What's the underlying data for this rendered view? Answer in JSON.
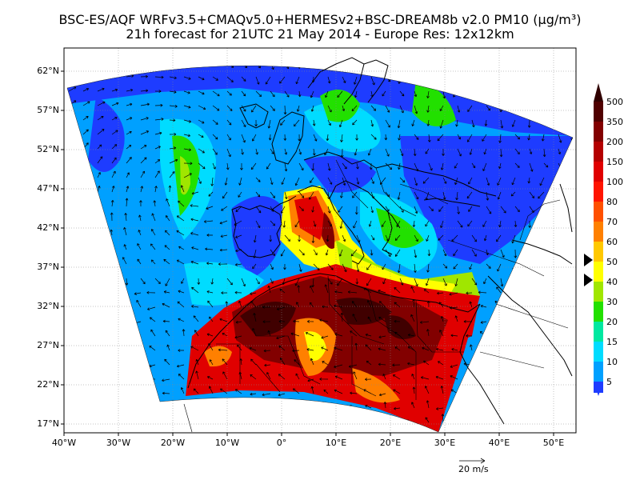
{
  "title": {
    "line1": "BSC-ES/AQF WRFv3.5+CMAQv5.0+HERMESv2+BSC-DREAM8b v2.0 PM10 (µg/m³)",
    "line2": "21h forecast for 21UTC 21 May 2014 - Europe Res: 12x12km"
  },
  "latitude_labels": [
    "62°N",
    "57°N",
    "52°N",
    "47°N",
    "42°N",
    "37°N",
    "32°N",
    "27°N",
    "22°N",
    "17°N"
  ],
  "longitude_labels": [
    "40°W",
    "30°W",
    "20°W",
    "10°W",
    "0°",
    "10°E",
    "20°E",
    "30°E",
    "40°E",
    "50°E"
  ],
  "colorbar": {
    "levels": [
      "5",
      "10",
      "15",
      "20",
      "30",
      "40",
      "50",
      "60",
      "70",
      "80",
      "100",
      "150",
      "200",
      "350",
      "500"
    ],
    "colors": [
      "#1e3cff",
      "#00a0ff",
      "#00dcff",
      "#00e8a0",
      "#22e000",
      "#a0e600",
      "#ffff00",
      "#ffc800",
      "#ff8000",
      "#ff5000",
      "#ff1400",
      "#e00000",
      "#b40000",
      "#820000",
      "#500000",
      "#300000"
    ]
  },
  "wind_reference": {
    "label": "20 m/s"
  },
  "field_colors": {
    "blue": "#1e3cff",
    "light_blue": "#00a0ff",
    "cyan": "#00dcff",
    "green": "#22e000",
    "yellow": "#ffff00",
    "orange": "#ff8000",
    "red": "#e00000",
    "dark_red": "#820000",
    "very_dark": "#400000"
  }
}
